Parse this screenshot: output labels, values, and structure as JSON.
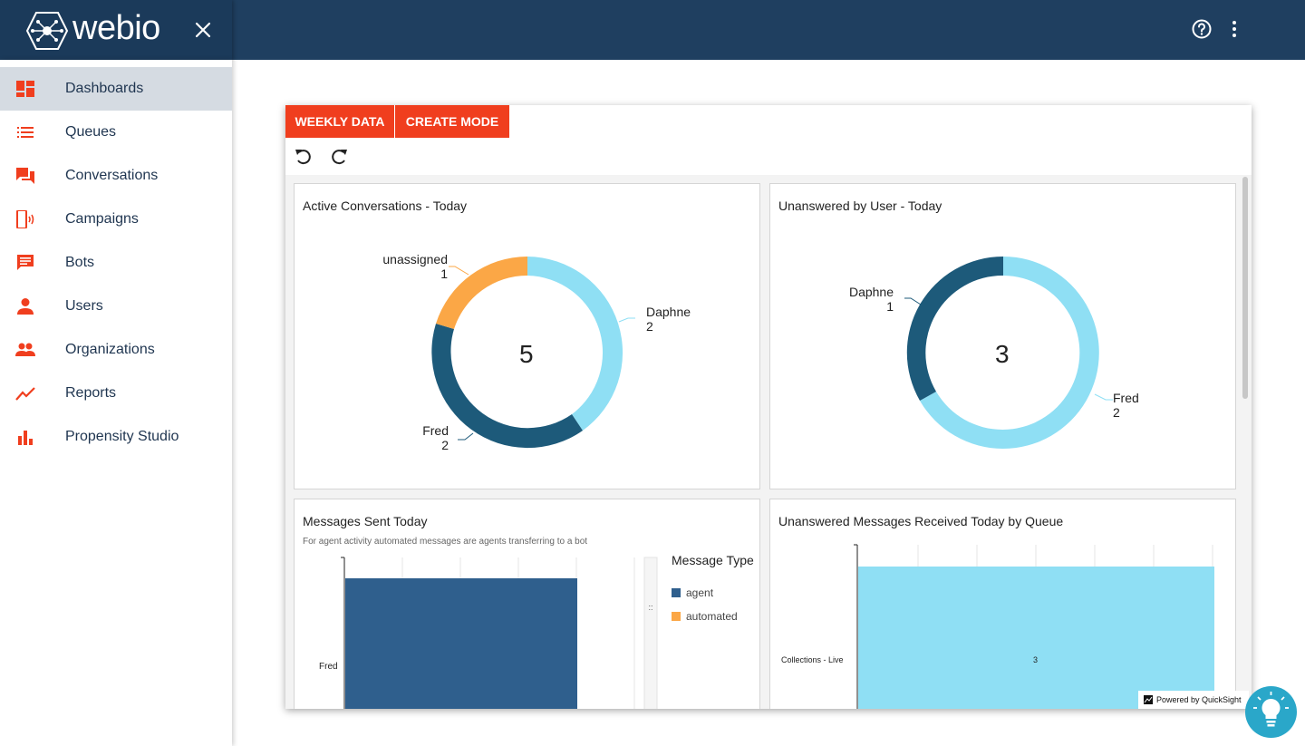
{
  "app": {
    "brand": "webio"
  },
  "sidebar": {
    "items": [
      {
        "label": "Dashboards",
        "icon": "dashboard-icon",
        "active": true
      },
      {
        "label": "Queues",
        "icon": "list-icon"
      },
      {
        "label": "Conversations",
        "icon": "chat-icon"
      },
      {
        "label": "Campaigns",
        "icon": "phone-icon"
      },
      {
        "label": "Bots",
        "icon": "message-icon"
      },
      {
        "label": "Users",
        "icon": "person-icon"
      },
      {
        "label": "Organizations",
        "icon": "group-icon"
      },
      {
        "label": "Reports",
        "icon": "trend-icon"
      },
      {
        "label": "Propensity Studio",
        "icon": "bar-chart-icon"
      }
    ]
  },
  "toolbar": {
    "weekly_data": "WEEKLY DATA",
    "create_mode": "CREATE MODE"
  },
  "colors": {
    "accent": "#f03e1e",
    "header": "#1f3f60",
    "dark_series": "#1d5a7a",
    "light_series": "#8fdff4",
    "orange_series": "#fba746",
    "bar_agent": "#2f5f8d"
  },
  "panels": {
    "active": {
      "title": "Active Conversations - Today",
      "total": "5",
      "labels": [
        {
          "name": "unassigned",
          "value": "1"
        },
        {
          "name": "Daphne",
          "value": "2"
        },
        {
          "name": "Fred",
          "value": "2"
        }
      ]
    },
    "unanswered_user": {
      "title": "Unanswered by User - Today",
      "total": "3",
      "labels": [
        {
          "name": "Daphne",
          "value": "1"
        },
        {
          "name": "Fred",
          "value": "2"
        }
      ]
    },
    "messages_sent": {
      "title": "Messages Sent Today",
      "subtitle": "For agent activity automated messages are agents transferring to a bot",
      "category": "Fred",
      "legend_title": "Message Type",
      "legend": [
        {
          "name": "agent",
          "color": "#2f5f8d"
        },
        {
          "name": "automated",
          "color": "#fba746"
        }
      ]
    },
    "unanswered_queue": {
      "title": "Unanswered Messages Received Today by Queue",
      "category": "Collections - Live",
      "value_label": "3"
    }
  },
  "footer": {
    "powered_by": "Powered by QuickSight"
  },
  "chart_data": [
    {
      "type": "pie",
      "title": "Active Conversations - Today",
      "total": 5,
      "slices": [
        {
          "name": "Daphne",
          "value": 2
        },
        {
          "name": "Fred",
          "value": 2
        },
        {
          "name": "unassigned",
          "value": 1
        }
      ]
    },
    {
      "type": "pie",
      "title": "Unanswered by User - Today",
      "total": 3,
      "slices": [
        {
          "name": "Fred",
          "value": 2
        },
        {
          "name": "Daphne",
          "value": 1
        }
      ]
    },
    {
      "type": "bar",
      "title": "Messages Sent Today",
      "categories": [
        "Fred"
      ],
      "series": [
        {
          "name": "agent",
          "values": [
            null
          ]
        },
        {
          "name": "automated",
          "values": [
            null
          ]
        }
      ]
    },
    {
      "type": "bar",
      "title": "Unanswered Messages Received Today by Queue",
      "categories": [
        "Collections - Live"
      ],
      "values": [
        3
      ]
    }
  ]
}
